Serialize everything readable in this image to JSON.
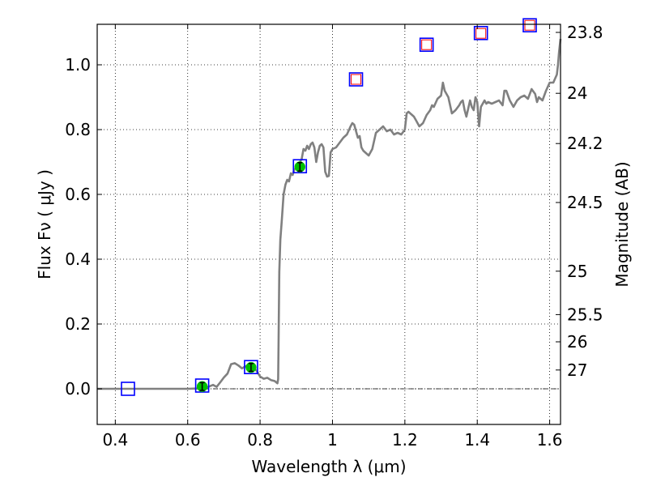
{
  "chart_data": {
    "type": "line",
    "xlabel": "Wavelength  λ (μm)",
    "ylabel": "Flux  Fν  ( μJy )",
    "y2label": "Magnitude (AB)",
    "xlim": [
      0.35,
      1.63
    ],
    "ylim": [
      -0.11,
      1.125
    ],
    "grid": true,
    "x_ticks": [
      {
        "value": 0.4,
        "label": "0.4"
      },
      {
        "value": 0.6,
        "label": "0.6"
      },
      {
        "value": 0.8,
        "label": "0.8"
      },
      {
        "value": 1.0,
        "label": "1"
      },
      {
        "value": 1.2,
        "label": "1.2"
      },
      {
        "value": 1.4,
        "label": "1.4"
      },
      {
        "value": 1.6,
        "label": "1.6"
      }
    ],
    "y_ticks": [
      {
        "value": 0.0,
        "label": "0.0"
      },
      {
        "value": 0.2,
        "label": "0.2"
      },
      {
        "value": 0.4,
        "label": "0.4"
      },
      {
        "value": 0.6,
        "label": "0.6"
      },
      {
        "value": 0.8,
        "label": "0.8"
      },
      {
        "value": 1.0,
        "label": "1.0"
      }
    ],
    "mag_ticks": [
      {
        "flux": 1.1,
        "label": "23.8"
      },
      {
        "flux": 0.912,
        "label": "24"
      },
      {
        "flux": 0.757,
        "label": "24.2"
      },
      {
        "flux": 0.575,
        "label": "24.5"
      },
      {
        "flux": 0.363,
        "label": "25"
      },
      {
        "flux": 0.229,
        "label": "25.5"
      },
      {
        "flux": 0.145,
        "label": "26"
      },
      {
        "flux": 0.058,
        "label": "27"
      }
    ],
    "colors": {
      "model": "#808080",
      "model_marker_edge": "#0000ff",
      "upper_limit_edge": "#ff0000",
      "detection_fill": "#00c000",
      "zero_line": "#000000"
    },
    "model_spectrum": [
      [
        0.35,
        0.0
      ],
      [
        0.4,
        0.0
      ],
      [
        0.45,
        0.0
      ],
      [
        0.5,
        0.0
      ],
      [
        0.55,
        0.0
      ],
      [
        0.6,
        0.0
      ],
      [
        0.63,
        0.001
      ],
      [
        0.65,
        0.003
      ],
      [
        0.67,
        0.012
      ],
      [
        0.68,
        0.006
      ],
      [
        0.69,
        0.02
      ],
      [
        0.7,
        0.035
      ],
      [
        0.71,
        0.047
      ],
      [
        0.72,
        0.076
      ],
      [
        0.73,
        0.079
      ],
      [
        0.74,
        0.072
      ],
      [
        0.75,
        0.063
      ],
      [
        0.76,
        0.07
      ],
      [
        0.77,
        0.06
      ],
      [
        0.78,
        0.065
      ],
      [
        0.79,
        0.056
      ],
      [
        0.8,
        0.038
      ],
      [
        0.81,
        0.031
      ],
      [
        0.82,
        0.034
      ],
      [
        0.83,
        0.027
      ],
      [
        0.84,
        0.024
      ],
      [
        0.848,
        0.017
      ],
      [
        0.85,
        0.03
      ],
      [
        0.851,
        0.14
      ],
      [
        0.853,
        0.36
      ],
      [
        0.856,
        0.46
      ],
      [
        0.86,
        0.52
      ],
      [
        0.865,
        0.6
      ],
      [
        0.87,
        0.63
      ],
      [
        0.875,
        0.645
      ],
      [
        0.88,
        0.64
      ],
      [
        0.885,
        0.665
      ],
      [
        0.89,
        0.66
      ],
      [
        0.895,
        0.678
      ],
      [
        0.9,
        0.68
      ],
      [
        0.905,
        0.695
      ],
      [
        0.91,
        0.7
      ],
      [
        0.915,
        0.71
      ],
      [
        0.92,
        0.74
      ],
      [
        0.925,
        0.735
      ],
      [
        0.93,
        0.75
      ],
      [
        0.935,
        0.74
      ],
      [
        0.94,
        0.755
      ],
      [
        0.945,
        0.76
      ],
      [
        0.95,
        0.745
      ],
      [
        0.955,
        0.7
      ],
      [
        0.96,
        0.73
      ],
      [
        0.965,
        0.75
      ],
      [
        0.97,
        0.755
      ],
      [
        0.975,
        0.745
      ],
      [
        0.98,
        0.67
      ],
      [
        0.985,
        0.655
      ],
      [
        0.99,
        0.657
      ],
      [
        0.995,
        0.73
      ],
      [
        1.0,
        0.74
      ],
      [
        1.01,
        0.745
      ],
      [
        1.02,
        0.76
      ],
      [
        1.03,
        0.775
      ],
      [
        1.04,
        0.785
      ],
      [
        1.05,
        0.81
      ],
      [
        1.055,
        0.82
      ],
      [
        1.06,
        0.815
      ],
      [
        1.07,
        0.775
      ],
      [
        1.075,
        0.78
      ],
      [
        1.08,
        0.745
      ],
      [
        1.085,
        0.735
      ],
      [
        1.09,
        0.73
      ],
      [
        1.1,
        0.72
      ],
      [
        1.11,
        0.74
      ],
      [
        1.12,
        0.79
      ],
      [
        1.13,
        0.8
      ],
      [
        1.14,
        0.81
      ],
      [
        1.15,
        0.795
      ],
      [
        1.16,
        0.8
      ],
      [
        1.17,
        0.785
      ],
      [
        1.18,
        0.79
      ],
      [
        1.19,
        0.785
      ],
      [
        1.2,
        0.8
      ],
      [
        1.205,
        0.85
      ],
      [
        1.21,
        0.855
      ],
      [
        1.22,
        0.845
      ],
      [
        1.225,
        0.84
      ],
      [
        1.23,
        0.83
      ],
      [
        1.24,
        0.81
      ],
      [
        1.25,
        0.82
      ],
      [
        1.26,
        0.845
      ],
      [
        1.27,
        0.86
      ],
      [
        1.275,
        0.875
      ],
      [
        1.28,
        0.87
      ],
      [
        1.29,
        0.895
      ],
      [
        1.3,
        0.905
      ],
      [
        1.305,
        0.945
      ],
      [
        1.31,
        0.92
      ],
      [
        1.32,
        0.9
      ],
      [
        1.33,
        0.85
      ],
      [
        1.34,
        0.86
      ],
      [
        1.35,
        0.875
      ],
      [
        1.355,
        0.885
      ],
      [
        1.36,
        0.89
      ],
      [
        1.365,
        0.86
      ],
      [
        1.37,
        0.84
      ],
      [
        1.38,
        0.89
      ],
      [
        1.385,
        0.87
      ],
      [
        1.39,
        0.86
      ],
      [
        1.395,
        0.9
      ],
      [
        1.4,
        0.885
      ],
      [
        1.405,
        0.81
      ],
      [
        1.41,
        0.87
      ],
      [
        1.42,
        0.89
      ],
      [
        1.425,
        0.88
      ],
      [
        1.43,
        0.885
      ],
      [
        1.44,
        0.88
      ],
      [
        1.45,
        0.885
      ],
      [
        1.46,
        0.89
      ],
      [
        1.47,
        0.875
      ],
      [
        1.475,
        0.92
      ],
      [
        1.48,
        0.92
      ],
      [
        1.49,
        0.89
      ],
      [
        1.5,
        0.87
      ],
      [
        1.51,
        0.89
      ],
      [
        1.52,
        0.9
      ],
      [
        1.53,
        0.905
      ],
      [
        1.54,
        0.895
      ],
      [
        1.55,
        0.925
      ],
      [
        1.56,
        0.91
      ],
      [
        1.565,
        0.885
      ],
      [
        1.57,
        0.9
      ],
      [
        1.58,
        0.89
      ],
      [
        1.59,
        0.92
      ],
      [
        1.6,
        0.945
      ],
      [
        1.61,
        0.945
      ],
      [
        1.62,
        0.97
      ],
      [
        1.623,
        1.0
      ],
      [
        1.626,
        1.04
      ],
      [
        1.63,
        1.08
      ]
    ],
    "model_photometry": [
      {
        "x": 0.435,
        "y": 0.0
      },
      {
        "x": 0.64,
        "y": 0.01
      },
      {
        "x": 0.775,
        "y": 0.067
      },
      {
        "x": 0.91,
        "y": 0.687
      },
      {
        "x": 1.065,
        "y": 0.955
      },
      {
        "x": 1.26,
        "y": 1.062
      },
      {
        "x": 1.41,
        "y": 1.098
      },
      {
        "x": 1.545,
        "y": 1.122
      }
    ],
    "upper_limits": [
      {
        "x": 1.065,
        "y": 0.955
      },
      {
        "x": 1.26,
        "y": 1.062
      },
      {
        "x": 1.41,
        "y": 1.097
      },
      {
        "x": 1.545,
        "y": 1.122
      }
    ],
    "detections": [
      {
        "x": 0.64,
        "y": 0.007,
        "err": 0.012
      },
      {
        "x": 0.775,
        "y": 0.066,
        "err": 0.012
      },
      {
        "x": 0.91,
        "y": 0.685,
        "err": 0.013
      }
    ]
  }
}
